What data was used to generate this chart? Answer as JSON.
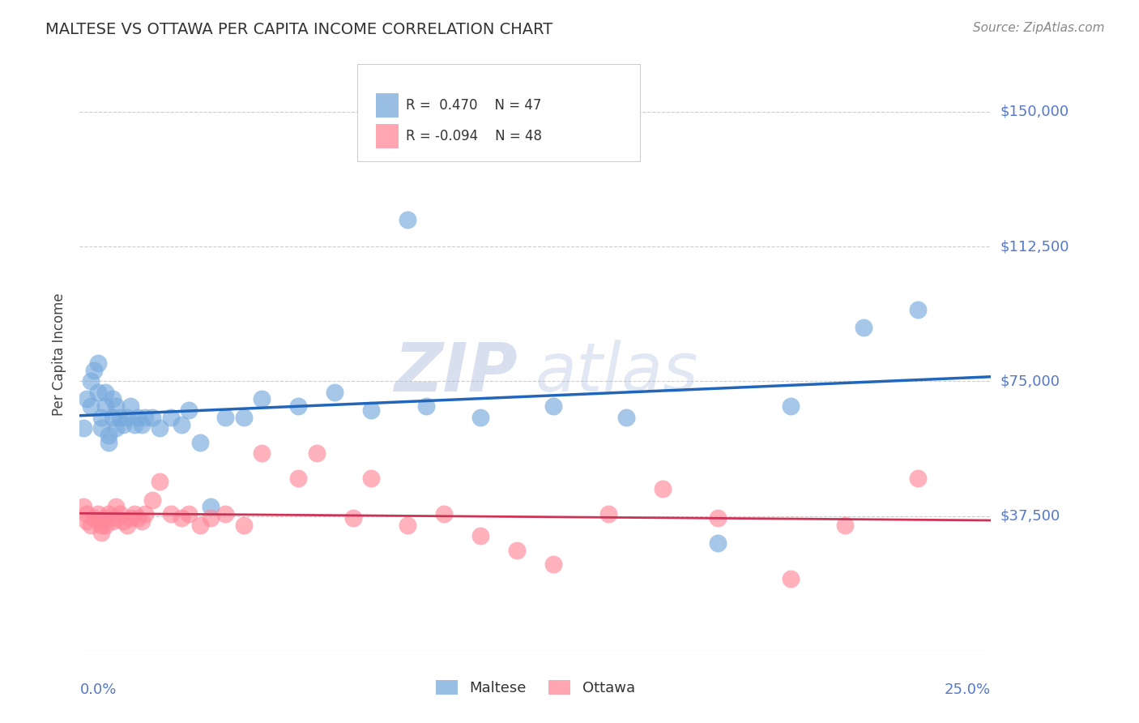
{
  "title": "MALTESE VS OTTAWA PER CAPITA INCOME CORRELATION CHART",
  "source": "Source: ZipAtlas.com",
  "ylabel": "Per Capita Income",
  "yticks": [
    0,
    37500,
    75000,
    112500,
    150000
  ],
  "ytick_labels": [
    "",
    "$37,500",
    "$75,000",
    "$112,500",
    "$150,000"
  ],
  "xlim": [
    0.0,
    0.25
  ],
  "ylim": [
    0,
    165000
  ],
  "blue_R": 0.47,
  "blue_N": 47,
  "pink_R": -0.094,
  "pink_N": 48,
  "blue_color": "#77AADD",
  "pink_color": "#FF8899",
  "blue_line_color": "#2266BB",
  "pink_line_color": "#CC3355",
  "axis_label_color": "#5577CC",
  "title_color": "#333333",
  "grid_color": "#CCCCCC",
  "watermark_color": "#AABBDD",
  "blue_x": [
    0.001,
    0.002,
    0.003,
    0.003,
    0.004,
    0.005,
    0.005,
    0.006,
    0.006,
    0.007,
    0.007,
    0.008,
    0.008,
    0.009,
    0.009,
    0.01,
    0.01,
    0.011,
    0.012,
    0.013,
    0.014,
    0.015,
    0.016,
    0.017,
    0.018,
    0.02,
    0.022,
    0.025,
    0.028,
    0.03,
    0.033,
    0.036,
    0.04,
    0.045,
    0.05,
    0.06,
    0.07,
    0.08,
    0.09,
    0.095,
    0.11,
    0.13,
    0.15,
    0.175,
    0.195,
    0.215,
    0.23
  ],
  "blue_y": [
    62000,
    70000,
    68000,
    75000,
    78000,
    72000,
    80000,
    65000,
    62000,
    68000,
    72000,
    60000,
    58000,
    65000,
    70000,
    62000,
    68000,
    65000,
    63000,
    65000,
    68000,
    63000,
    65000,
    63000,
    65000,
    65000,
    62000,
    65000,
    63000,
    67000,
    58000,
    40000,
    65000,
    65000,
    70000,
    68000,
    72000,
    67000,
    120000,
    68000,
    65000,
    68000,
    65000,
    30000,
    68000,
    90000,
    95000
  ],
  "pink_x": [
    0.001,
    0.002,
    0.002,
    0.003,
    0.004,
    0.005,
    0.005,
    0.006,
    0.006,
    0.007,
    0.007,
    0.008,
    0.009,
    0.01,
    0.01,
    0.011,
    0.012,
    0.013,
    0.014,
    0.015,
    0.016,
    0.017,
    0.018,
    0.02,
    0.022,
    0.025,
    0.028,
    0.03,
    0.033,
    0.036,
    0.04,
    0.045,
    0.05,
    0.06,
    0.065,
    0.075,
    0.08,
    0.09,
    0.1,
    0.11,
    0.12,
    0.13,
    0.145,
    0.16,
    0.175,
    0.195,
    0.21,
    0.23
  ],
  "pink_y": [
    40000,
    38000,
    36000,
    35000,
    37000,
    38000,
    36000,
    35000,
    33000,
    37000,
    35000,
    38000,
    36000,
    40000,
    37000,
    38000,
    36000,
    35000,
    37000,
    38000,
    37000,
    36000,
    38000,
    42000,
    47000,
    38000,
    37000,
    38000,
    35000,
    37000,
    38000,
    35000,
    55000,
    48000,
    55000,
    37000,
    48000,
    35000,
    38000,
    32000,
    28000,
    24000,
    38000,
    45000,
    37000,
    20000,
    35000,
    48000
  ]
}
